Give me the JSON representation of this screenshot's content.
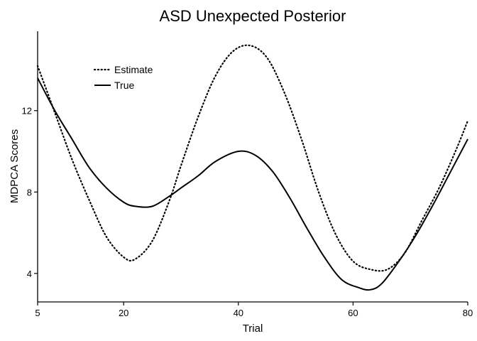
{
  "chart_data": {
    "type": "line",
    "title": "ASD Unexpected Posterior",
    "xlabel": "Trial",
    "ylabel": "MDPCA Scores",
    "xlim": [
      5,
      80
    ],
    "ylim": [
      2.6,
      15.9
    ],
    "xticks": [
      5,
      20,
      40,
      60,
      80
    ],
    "yticks": [
      4,
      8,
      12
    ],
    "grid": false,
    "legend_position": "top-left",
    "series": [
      {
        "name": "Estimate",
        "style": "dotted",
        "x": [
          5,
          8,
          11,
          14,
          17,
          20,
          22,
          25,
          28,
          30,
          33,
          36,
          39,
          42,
          45,
          48,
          51,
          54,
          57,
          60,
          63,
          66,
          69,
          72,
          75,
          78,
          80
        ],
        "y": [
          14.2,
          11.9,
          9.6,
          7.6,
          5.8,
          4.8,
          4.7,
          5.6,
          7.6,
          9.3,
          11.7,
          13.7,
          14.9,
          15.2,
          14.6,
          12.9,
          10.6,
          8.0,
          5.9,
          4.6,
          4.2,
          4.2,
          5.0,
          6.6,
          8.2,
          10.1,
          11.5
        ]
      },
      {
        "name": "True",
        "style": "solid",
        "x": [
          5,
          8,
          11,
          14,
          17,
          20,
          22,
          25,
          28,
          30,
          33,
          36,
          40,
          43,
          46,
          49,
          52,
          55,
          58,
          61,
          63,
          65,
          68,
          71,
          74,
          77,
          80
        ],
        "y": [
          13.6,
          12.0,
          10.6,
          9.2,
          8.2,
          7.5,
          7.3,
          7.3,
          7.8,
          8.2,
          8.8,
          9.5,
          10.0,
          9.8,
          9.0,
          7.7,
          6.2,
          4.8,
          3.7,
          3.3,
          3.2,
          3.5,
          4.6,
          5.9,
          7.4,
          9.0,
          10.6
        ]
      }
    ]
  }
}
